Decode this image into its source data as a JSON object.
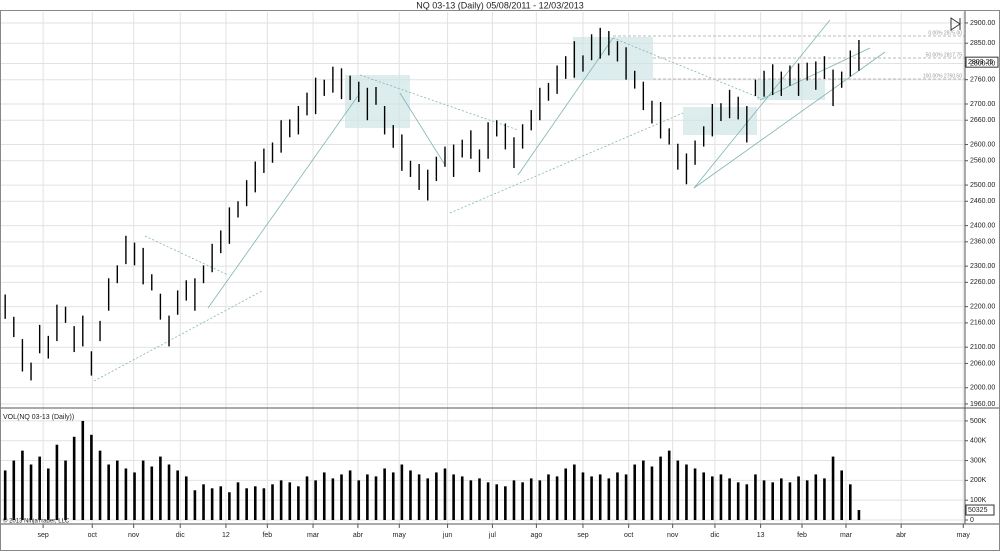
{
  "chart_data": [
    {
      "type": "ohlc",
      "title": "NQ 03-13 (Daily)  05/08/2011 - 12/03/2013",
      "high": [
        2230,
        2175,
        2120,
        2062,
        2155,
        2128,
        2205,
        2200,
        2152,
        2178,
        2090,
        2165,
        2270,
        2302,
        2375,
        2358,
        2345,
        2280,
        2232,
        2178,
        2240,
        2265,
        2270,
        2302,
        2355,
        2388,
        2445,
        2460,
        2512,
        2558,
        2590,
        2605,
        2660,
        2662,
        2695,
        2728,
        2765,
        2760,
        2792,
        2788,
        2770,
        2755,
        2740,
        2742,
        2695,
        2648,
        2625,
        2560,
        2552,
        2538,
        2570,
        2595,
        2600,
        2612,
        2635,
        2588,
        2655,
        2660,
        2652,
        2618,
        2650,
        2685,
        2740,
        2752,
        2795,
        2818,
        2855,
        2820,
        2872,
        2888,
        2880,
        2855,
        2840,
        2782,
        2755,
        2708,
        2705,
        2640,
        2602,
        2578,
        2610,
        2645,
        2700,
        2702,
        2735,
        2718,
        2695,
        2760,
        2782,
        2798,
        2780,
        2795,
        2800,
        2802,
        2805,
        2818,
        2785,
        2780,
        2832,
        2858
      ],
      "low": [
        2170,
        2125,
        2040,
        2018,
        2085,
        2072,
        2115,
        2160,
        2088,
        2102,
        2030,
        2115,
        2190,
        2258,
        2305,
        2302,
        2255,
        2240,
        2168,
        2102,
        2180,
        2215,
        2190,
        2258,
        2285,
        2332,
        2355,
        2420,
        2448,
        2482,
        2530,
        2555,
        2580,
        2618,
        2625,
        2672,
        2675,
        2720,
        2728,
        2712,
        2710,
        2705,
        2660,
        2698,
        2625,
        2592,
        2535,
        2520,
        2488,
        2462,
        2510,
        2545,
        2520,
        2568,
        2565,
        2532,
        2565,
        2620,
        2588,
        2542,
        2590,
        2635,
        2660,
        2708,
        2725,
        2762,
        2765,
        2780,
        2808,
        2812,
        2820,
        2805,
        2760,
        2738,
        2685,
        2652,
        2615,
        2600,
        2538,
        2502,
        2550,
        2595,
        2620,
        2658,
        2665,
        2662,
        2605,
        2720,
        2718,
        2722,
        2720,
        2745,
        2720,
        2758,
        2735,
        2762,
        2695,
        2740,
        2768,
        2782
      ],
      "color": "#000000",
      "ylim": [
        1950,
        2927
      ],
      "yticks": [
        {
          "value": 1960,
          "label": "1960.00"
        },
        {
          "value": 2000,
          "label": "2000.00"
        },
        {
          "value": 2060,
          "label": "2060.00"
        },
        {
          "value": 2100,
          "label": "2100.00"
        },
        {
          "value": 2160,
          "label": "2160.00"
        },
        {
          "value": 2200,
          "label": "2200.00"
        },
        {
          "value": 2260,
          "label": "2260.00"
        },
        {
          "value": 2300,
          "label": "2300.00"
        },
        {
          "value": 2360,
          "label": "2360.00"
        },
        {
          "value": 2400,
          "label": "2400.00"
        },
        {
          "value": 2460,
          "label": "2460.00"
        },
        {
          "value": 2500,
          "label": "2500.00"
        },
        {
          "value": 2560,
          "label": "2560.00"
        },
        {
          "value": 2600,
          "label": "2600.00"
        },
        {
          "value": 2660,
          "label": "2660.00"
        },
        {
          "value": 2700,
          "label": "2700.00"
        },
        {
          "value": 2760,
          "label": "2760.00"
        },
        {
          "value": 2800,
          "label": "2800.00"
        },
        {
          "value": 2850,
          "label": "2850.00"
        },
        {
          "value": 2900,
          "label": "2900.00"
        }
      ],
      "xlim": [
        -0.6,
        111.3
      ],
      "xticks": [
        {
          "value": 4.4,
          "label": "sep"
        },
        {
          "value": 10.1,
          "label": "oct"
        },
        {
          "value": 14.9,
          "label": "nov"
        },
        {
          "value": 20.3,
          "label": "dic"
        },
        {
          "value": 25.6,
          "label": "12"
        },
        {
          "value": 30.4,
          "label": "feb"
        },
        {
          "value": 35.7,
          "label": "mar"
        },
        {
          "value": 40.9,
          "label": "abr"
        },
        {
          "value": 45.7,
          "label": "may"
        },
        {
          "value": 51.3,
          "label": "jun"
        },
        {
          "value": 56.5,
          "label": "jul"
        },
        {
          "value": 61.6,
          "label": "ago"
        },
        {
          "value": 67.0,
          "label": "sep"
        },
        {
          "value": 72.3,
          "label": "oct"
        },
        {
          "value": 77.4,
          "label": "nov"
        },
        {
          "value": 82.3,
          "label": "dic"
        },
        {
          "value": 87.6,
          "label": "13"
        },
        {
          "value": 92.4,
          "label": "feb"
        },
        {
          "value": 97.5,
          "label": "mar"
        },
        {
          "value": 103.9,
          "label": "abr"
        },
        {
          "value": 111.1,
          "label": "may"
        }
      ],
      "grid": true,
      "last_price": {
        "value": 2803.25,
        "label": "2803.25"
      },
      "annotations": [
        "0.00% 2875.00",
        "50.00% 2817.75",
        "100.00% 2760.50"
      ]
    },
    {
      "type": "bar",
      "title": "VOL(NQ 03-13 (Daily))",
      "values": [
        250000,
        300000,
        350000,
        280000,
        320000,
        260000,
        380000,
        300000,
        420000,
        500000,
        430000,
        350000,
        280000,
        300000,
        260000,
        240000,
        300000,
        270000,
        320000,
        280000,
        250000,
        220000,
        150000,
        180000,
        160000,
        170000,
        140000,
        190000,
        160000,
        170000,
        160000,
        180000,
        200000,
        190000,
        170000,
        220000,
        200000,
        240000,
        210000,
        230000,
        250000,
        200000,
        230000,
        220000,
        260000,
        240000,
        280000,
        250000,
        230000,
        210000,
        240000,
        260000,
        230000,
        220000,
        200000,
        210000,
        190000,
        180000,
        170000,
        200000,
        190000,
        210000,
        200000,
        230000,
        220000,
        260000,
        280000,
        240000,
        220000,
        230000,
        210000,
        240000,
        230000,
        280000,
        300000,
        270000,
        320000,
        350000,
        300000,
        280000,
        260000,
        240000,
        220000,
        230000,
        210000,
        190000,
        180000,
        230000,
        200000,
        190000,
        210000,
        190000,
        220000,
        200000,
        230000,
        210000,
        320000,
        250000,
        180000,
        50325
      ],
      "color": "#000000",
      "ylim": [
        0,
        545000
      ],
      "yticks": [
        0,
        {
          "value": 100000,
          "label": "100K"
        },
        {
          "value": 200000,
          "label": "200K"
        },
        {
          "value": 300000,
          "label": "300K"
        },
        {
          "value": 400000,
          "label": "400K"
        },
        {
          "value": 500000,
          "label": "500K"
        }
      ],
      "last_value": 50325
    }
  ],
  "footer": "© 2013 NinjaTrader, LLC"
}
